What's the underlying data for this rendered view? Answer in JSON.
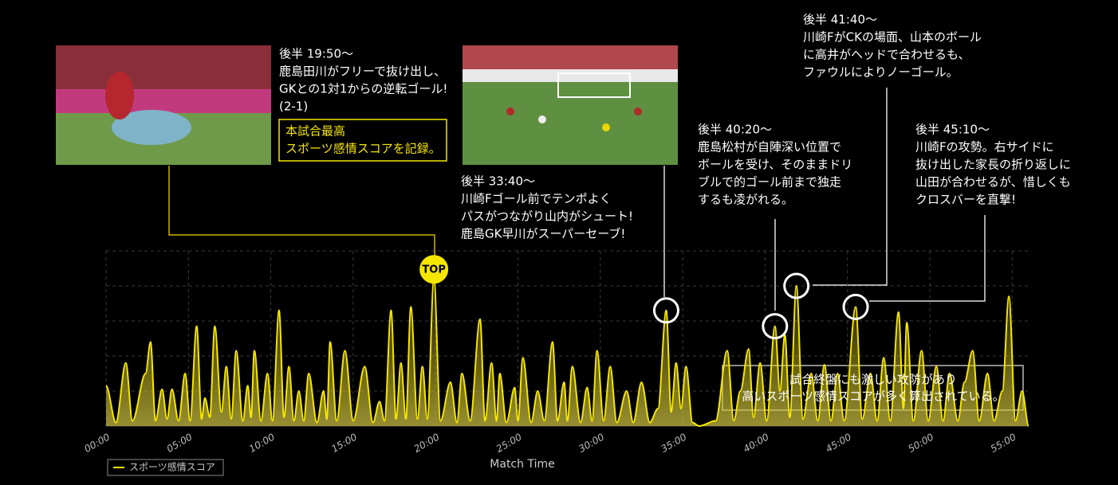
{
  "chart_data": {
    "type": "line",
    "x_label": "Match Time",
    "x": [
      0,
      0.6,
      1.2,
      1.6,
      2.4,
      2.7,
      3,
      3.4,
      3.7,
      4,
      4.4,
      4.8,
      5.1,
      5.5,
      5.8,
      6,
      6.3,
      6.6,
      7,
      7.3,
      7.6,
      7.9,
      8.3,
      8.6,
      8.8,
      9,
      9.4,
      9.8,
      10.1,
      10.5,
      10.8,
      11.1,
      11.4,
      11.7,
      12,
      12.3,
      12.8,
      13.2,
      13.4,
      13.6,
      14,
      14.5,
      15,
      15.7,
      16.2,
      16.6,
      16.9,
      17.3,
      17.6,
      17.9,
      18.2,
      18.5,
      18.9,
      19.2,
      19.5,
      19.9,
      20.3,
      20.9,
      21.3,
      21.6,
      22.1,
      22.7,
      23,
      23.4,
      23.7,
      23.9,
      24.3,
      24.8,
      25,
      25.3,
      25.8,
      26.2,
      26.6,
      27.1,
      27.4,
      27.8,
      28,
      28.3,
      28.8,
      29.2,
      29.5,
      29.8,
      30.2,
      30.6,
      31,
      31.6,
      32,
      32.5,
      33,
      33.5,
      34,
      34.3,
      34.6,
      34.9,
      35.2,
      35.6,
      36,
      37,
      37.7,
      38.1,
      38.5,
      39,
      39.3,
      39.7,
      40.1,
      40.6,
      40.9,
      41.2,
      41.5,
      41.9,
      42.3,
      42.8,
      43.2,
      43.6,
      44,
      44.4,
      44.8,
      45.5,
      45.9,
      46.4,
      46.8,
      47.2,
      47.6,
      48.1,
      48.4,
      48.6,
      49,
      49.5,
      49.9,
      50.4,
      50.8,
      51.2,
      51.7,
      52.1,
      52.6,
      53,
      53.5,
      53.9,
      54.4,
      54.8,
      55.2,
      55.6,
      56
    ],
    "series": [
      {
        "name": "スポーツ感情スコア",
        "color": "#f5e600",
        "values": [
          23,
          2,
          36,
          3,
          30,
          48,
          3,
          21,
          4,
          21,
          3,
          30,
          3,
          57,
          4,
          16,
          5,
          57,
          8,
          34,
          4,
          43,
          3,
          23,
          5,
          43,
          3,
          30,
          3,
          66,
          5,
          34,
          3,
          20,
          3,
          30,
          2,
          20,
          4,
          48,
          3,
          43,
          3,
          34,
          2,
          14,
          3,
          66,
          4,
          36,
          4,
          68,
          4,
          34,
          4,
          84,
          3,
          25,
          2,
          30,
          3,
          61,
          3,
          36,
          3,
          30,
          2,
          22,
          3,
          39,
          2,
          20,
          3,
          48,
          3,
          25,
          3,
          34,
          2,
          22,
          3,
          43,
          3,
          34,
          2,
          20,
          2,
          25,
          2,
          10,
          66,
          8,
          36,
          10,
          34,
          2,
          0,
          3,
          43,
          3,
          20,
          44,
          5,
          36,
          3,
          57,
          20,
          52,
          5,
          80,
          4,
          30,
          3,
          35,
          3,
          30,
          3,
          68,
          4,
          30,
          3,
          39,
          3,
          65,
          10,
          59,
          3,
          43,
          3,
          34,
          3,
          30,
          3,
          25,
          43,
          3,
          30,
          3,
          20,
          74,
          3,
          20,
          0
        ]
      }
    ],
    "xlim": [
      0,
      56
    ],
    "xticks": [
      {
        "value": 0,
        "label": "00:00"
      },
      {
        "value": 5,
        "label": "05:00"
      },
      {
        "value": 10,
        "label": "10:00"
      },
      {
        "value": 15,
        "label": "15:00"
      },
      {
        "value": 20,
        "label": "20:00"
      },
      {
        "value": 25,
        "label": "25:00"
      },
      {
        "value": 30,
        "label": "30:00"
      },
      {
        "value": 35,
        "label": "35:00"
      },
      {
        "value": 40,
        "label": "40:00"
      },
      {
        "value": 45,
        "label": "45:00"
      },
      {
        "value": 50,
        "label": "50:00"
      },
      {
        "value": 55,
        "label": "55:00"
      }
    ],
    "ylim": [
      0,
      100
    ],
    "grid": true,
    "legend": "bottom-left",
    "top_label": "TOP",
    "highlight": [
      "本試合最高",
      "スポーツ感情スコアを記録。"
    ],
    "note": [
      "試合終盤にも激しい攻防があり",
      "高いスポーツ感情スコアが多く算出されている。"
    ],
    "annotations": [
      {
        "time": "後半 19:50〜",
        "lines": [
          "鹿島田川がフリーで抜け出し、",
          "GKとの1対1からの逆転ゴール!",
          "(2-1)"
        ]
      },
      {
        "time": "後半 33:40〜",
        "lines": [
          "川崎Fゴール前でテンポよく",
          "パスがつながり山内がシュート!",
          "鹿島GK早川がスーパーセーブ!"
        ]
      },
      {
        "time": "後半 40:20〜",
        "lines": [
          "鹿島松村が自陣深い位置で",
          "ボールを受け、そのままドリ",
          "ブルで的ゴール前まで独走",
          "するも凌がれる。"
        ]
      },
      {
        "time": "後半 41:40〜",
        "lines": [
          "川崎FがCKの場面、山本のボール",
          "に高井がヘッドで合わせるも、",
          "ファウルによりノーゴール。"
        ]
      },
      {
        "time": "後半 45:10〜",
        "lines": [
          "川崎Fの攻勢。右サイドに",
          "抜け出した家長の折り返しに",
          "山田が合わせるが、惜しくも",
          "クロスバーを直撃!"
        ]
      }
    ]
  }
}
